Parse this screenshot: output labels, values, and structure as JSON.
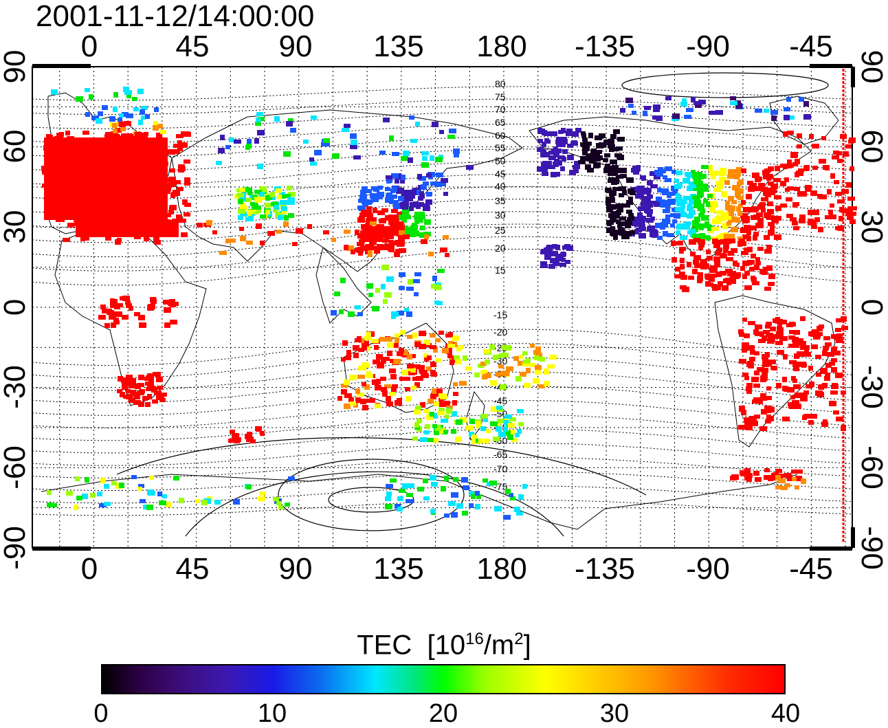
{
  "title": "2001-11-12/14:00:00",
  "axes": {
    "top_ticks": [
      "0",
      "45",
      "90",
      "135",
      "180",
      "-135",
      "-90",
      "-45"
    ],
    "bottom_ticks": [
      "0",
      "45",
      "90",
      "135",
      "180",
      "-135",
      "-90",
      "-45"
    ],
    "left_ticks": [
      "90",
      "60",
      "30",
      "0",
      "-30",
      "-60",
      "-90"
    ],
    "right_ticks": [
      "90",
      "60",
      "30",
      "0",
      "-30",
      "-60",
      "-90"
    ]
  },
  "contour_labels": {
    "north": [
      "80",
      "75",
      "70",
      "65",
      "60",
      "55",
      "50",
      "45",
      "40",
      "35",
      "30",
      "25",
      "20",
      "15"
    ],
    "south": [
      "-15",
      "-20",
      "-25",
      "-30",
      "-35",
      "-40",
      "-45",
      "-50",
      "-55",
      "-60",
      "-65",
      "-70",
      "-75"
    ]
  },
  "colorbar": {
    "title": "TEC",
    "unit_base": "10",
    "unit_exp": "16",
    "unit_mid": "/m",
    "unit_exp2": "2",
    "ticks": [
      "0",
      "10",
      "20",
      "30",
      "40"
    ],
    "range": [
      0,
      40
    ]
  },
  "colors": {
    "red": "#ff0000",
    "orange": "#ff8c00",
    "yellow": "#ffff00",
    "lime": "#9aff00",
    "green": "#00e600",
    "cyan": "#00e6ff",
    "blue": "#1a5aff",
    "indigo": "#3d18b0",
    "purple": "#3a0a6e",
    "black": "#140020"
  }
}
